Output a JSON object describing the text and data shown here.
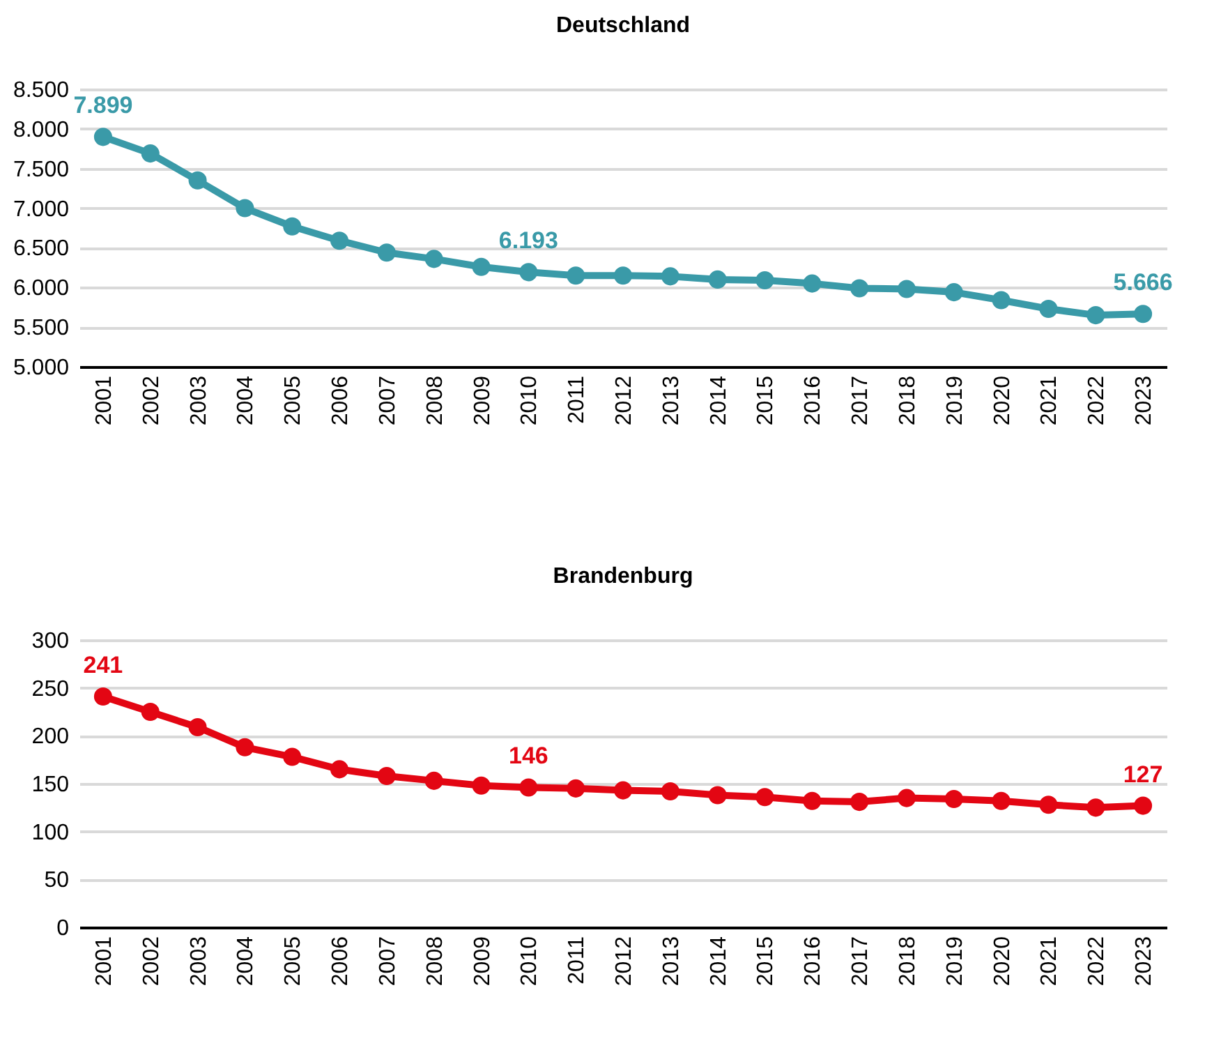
{
  "chart_data": [
    {
      "type": "line",
      "title": "Deutschland",
      "categories": [
        "2001",
        "2002",
        "2003",
        "2004",
        "2005",
        "2006",
        "2007",
        "2008",
        "2009",
        "2010",
        "2011",
        "2012",
        "2013",
        "2014",
        "2015",
        "2016",
        "2017",
        "2018",
        "2019",
        "2020",
        "2021",
        "2022",
        "2023"
      ],
      "series": [
        {
          "color": "#3a9aa8",
          "values": [
            7899,
            7690,
            7350,
            7000,
            6770,
            6590,
            6440,
            6360,
            6260,
            6193,
            6150,
            6150,
            6140,
            6100,
            6090,
            6050,
            5990,
            5980,
            5940,
            5840,
            5730,
            5650,
            5666
          ],
          "value_labels": [
            "7.899",
            null,
            null,
            null,
            null,
            null,
            null,
            null,
            null,
            "6.193",
            null,
            null,
            null,
            null,
            null,
            null,
            null,
            null,
            null,
            null,
            null,
            null,
            "5.666"
          ]
        }
      ],
      "ylim": [
        5000,
        8500
      ],
      "yticks": [
        {
          "value": 5000,
          "label": "5.000"
        },
        {
          "value": 5500,
          "label": "5.500"
        },
        {
          "value": 6000,
          "label": "6.000"
        },
        {
          "value": 6500,
          "label": "6.500"
        },
        {
          "value": 7000,
          "label": "7.000"
        },
        {
          "value": 7500,
          "label": "7.500"
        },
        {
          "value": 8000,
          "label": "8.000"
        },
        {
          "value": 8500,
          "label": "8.500"
        }
      ],
      "grid": "y",
      "marker": "circle",
      "line_style": "solid"
    },
    {
      "type": "line",
      "title": "Brandenburg",
      "categories": [
        "2001",
        "2002",
        "2003",
        "2004",
        "2005",
        "2006",
        "2007",
        "2008",
        "2009",
        "2010",
        "2011",
        "2012",
        "2013",
        "2014",
        "2015",
        "2016",
        "2017",
        "2018",
        "2019",
        "2020",
        "2021",
        "2022",
        "2023"
      ],
      "series": [
        {
          "color": "#e30613",
          "values": [
            241,
            225,
            209,
            188,
            178,
            165,
            158,
            153,
            148,
            146,
            145,
            143,
            142,
            138,
            136,
            132,
            131,
            135,
            134,
            132,
            128,
            125,
            127
          ],
          "value_labels": [
            "241",
            null,
            null,
            null,
            null,
            null,
            null,
            null,
            null,
            "146",
            null,
            null,
            null,
            null,
            null,
            null,
            null,
            null,
            null,
            null,
            null,
            null,
            "127"
          ]
        }
      ],
      "ylim": [
        0,
        300
      ],
      "yticks": [
        0,
        50,
        100,
        150,
        200,
        250,
        300
      ],
      "grid": "y",
      "marker": "circle",
      "line_style": "solid"
    }
  ]
}
